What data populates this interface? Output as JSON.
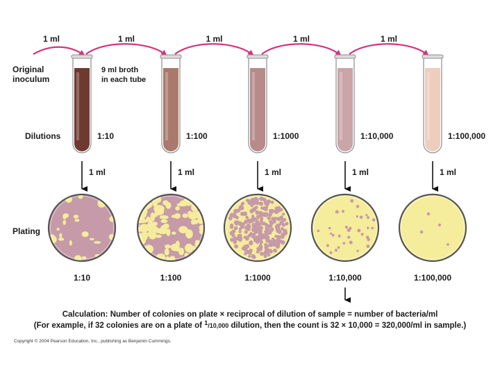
{
  "transfer_label": "1 ml",
  "original_inoculum": [
    "Original",
    "inoculum"
  ],
  "broth_note": [
    "9 ml broth",
    "in each tube"
  ],
  "dilutions_label": "Dilutions",
  "plating_label": "Plating",
  "tubes": [
    {
      "dilution": "1:10",
      "color": "#6e3a30"
    },
    {
      "dilution": "1:100",
      "color": "#a97a6c"
    },
    {
      "dilution": "1:1000",
      "color": "#b68b8a"
    },
    {
      "dilution": "1:10,000",
      "color": "#c9a4a8"
    },
    {
      "dilution": "1:100,000",
      "color": "#edcdbd"
    }
  ],
  "plates": [
    {
      "label": "1:10",
      "growth": "lawn"
    },
    {
      "label": "1:100",
      "growth": "dense"
    },
    {
      "label": "1:1000",
      "growth": "many"
    },
    {
      "label": "1:10,000",
      "growth": "countable"
    },
    {
      "label": "1:100,000",
      "growth": "few"
    }
  ],
  "colors": {
    "arrow": "#d6337e",
    "agar": "#f5ec9c",
    "colony": "#c69aa8",
    "plate_rim": "#555555"
  },
  "calculation": {
    "line1": "Calculation: Number of colonies on plate × reciprocal of dilution of sample = number of bacteria/ml",
    "line2_prefix": "(For example, if 32 colonies are on a plate of ",
    "line2_num": "1",
    "line2_den": "/10,000",
    "line2_suffix": " dilution, then the count is 32 × 10,000 = 320,000/ml in sample.)"
  },
  "copyright": "Copyright © 2004 Pearson Education, Inc., publishing as Benjamin Cummings."
}
